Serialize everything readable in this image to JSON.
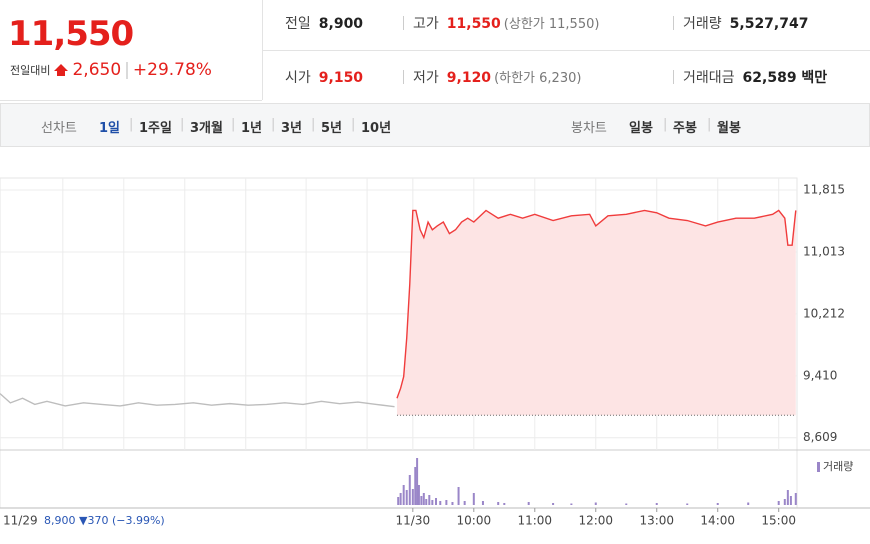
{
  "summary": {
    "price": "11,550",
    "change_label": "전일대비",
    "change": "2,650",
    "change_rate": "+29.78%"
  },
  "stats": [
    {
      "label": "전일",
      "value": "8,900"
    },
    {
      "label": "고가",
      "value": "11,550",
      "note": "(상한가 11,550)"
    },
    {
      "label": "거래량",
      "value": "5,527,747"
    },
    {
      "label": "시가",
      "value": "9,150"
    },
    {
      "label": "저가",
      "value": "9,120",
      "note": "(하한가 6,230)"
    },
    {
      "label": "거래대금",
      "value": "62,589 백만"
    }
  ],
  "tabs": {
    "line_label": "선차트",
    "line_periods": [
      "1일",
      "1주일",
      "3개월",
      "1년",
      "3년",
      "5년",
      "10년"
    ],
    "candle_label": "봉차트",
    "candle_periods": [
      "일봉",
      "주봉",
      "월봉"
    ]
  },
  "chart_data": {
    "type": "line",
    "prev_day_label": "11/29",
    "prev_day_summary": "8,900 ▼370 (−3.99%)",
    "xlim": [
      2.23,
      15.3
    ],
    "xticks": [
      {
        "value": 9,
        "label": "11/30"
      },
      {
        "value": 10,
        "label": "10:00"
      },
      {
        "value": 11,
        "label": "11:00"
      },
      {
        "value": 12,
        "label": "12:00"
      },
      {
        "value": 13,
        "label": "13:00"
      },
      {
        "value": 14,
        "label": "14:00"
      },
      {
        "value": 15,
        "label": "15:00"
      }
    ],
    "xgrid": [
      3.26,
      4.26,
      5.26,
      6.26,
      7.25,
      8.25
    ],
    "ylim": [
      8450,
      11970
    ],
    "yticks": [
      {
        "value": 11815,
        "label": "11,815"
      },
      {
        "value": 11013,
        "label": "11,013"
      },
      {
        "value": 10212,
        "label": "10,212"
      },
      {
        "value": 9410,
        "label": "9,410"
      },
      {
        "value": 8609,
        "label": "8,609"
      }
    ],
    "baseline": 8900,
    "y2lim": [
      0,
      500000
    ],
    "series": [
      {
        "color": "#bdbdbd",
        "x": [
          2.23,
          2.4,
          2.6,
          2.8,
          3.0,
          3.3,
          3.6,
          3.9,
          4.2,
          4.5,
          4.8,
          5.1,
          5.4,
          5.7,
          6.0,
          6.3,
          6.6,
          6.9,
          7.2,
          7.5,
          7.8,
          8.1,
          8.4,
          8.7
        ],
        "values": [
          9180,
          9060,
          9120,
          9040,
          9080,
          9020,
          9060,
          9040,
          9020,
          9060,
          9030,
          9040,
          9060,
          9030,
          9050,
          9030,
          9040,
          9060,
          9040,
          9080,
          9050,
          9070,
          9040,
          9010
        ]
      },
      {
        "color": "#f03c3c",
        "fill": "#fde4e4",
        "x": [
          8.74,
          8.8,
          8.85,
          8.9,
          8.95,
          9.0,
          9.05,
          9.12,
          9.18,
          9.25,
          9.32,
          9.4,
          9.5,
          9.6,
          9.7,
          9.8,
          9.9,
          10.0,
          10.2,
          10.4,
          10.6,
          10.8,
          11.0,
          11.3,
          11.6,
          11.9,
          12.0,
          12.2,
          12.5,
          12.8,
          13.0,
          13.2,
          13.5,
          13.8,
          14.0,
          14.3,
          14.6,
          14.9,
          15.0,
          15.1,
          15.15,
          15.22,
          15.28
        ],
        "values": [
          9120,
          9250,
          9400,
          9900,
          10600,
          11550,
          11550,
          11300,
          11200,
          11400,
          11300,
          11350,
          11400,
          11250,
          11300,
          11400,
          11450,
          11400,
          11550,
          11450,
          11500,
          11450,
          11500,
          11420,
          11480,
          11500,
          11350,
          11480,
          11500,
          11550,
          11520,
          11450,
          11420,
          11350,
          11400,
          11450,
          11450,
          11500,
          11550,
          11450,
          11100,
          11100,
          11550
        ]
      },
      {
        "name": "거래량",
        "color": "#9a86c8",
        "axis": "y2",
        "type": "bar",
        "x": [
          8.76,
          8.8,
          8.85,
          8.9,
          8.95,
          9.0,
          9.04,
          9.07,
          9.1,
          9.14,
          9.18,
          9.22,
          9.27,
          9.32,
          9.38,
          9.45,
          9.55,
          9.65,
          9.75,
          9.85,
          10.0,
          10.15,
          10.4,
          10.5,
          10.9,
          11.3,
          11.6,
          12.0,
          12.5,
          13.0,
          13.5,
          14.0,
          14.5,
          15.0,
          15.1,
          15.15,
          15.2,
          15.28
        ],
        "values": [
          80000,
          120000,
          200000,
          150000,
          300000,
          160000,
          380000,
          470000,
          200000,
          90000,
          120000,
          60000,
          100000,
          50000,
          70000,
          40000,
          50000,
          30000,
          180000,
          40000,
          120000,
          40000,
          30000,
          20000,
          30000,
          20000,
          15000,
          25000,
          15000,
          20000,
          15000,
          20000,
          25000,
          40000,
          60000,
          150000,
          90000,
          120000
        ]
      }
    ]
  }
}
